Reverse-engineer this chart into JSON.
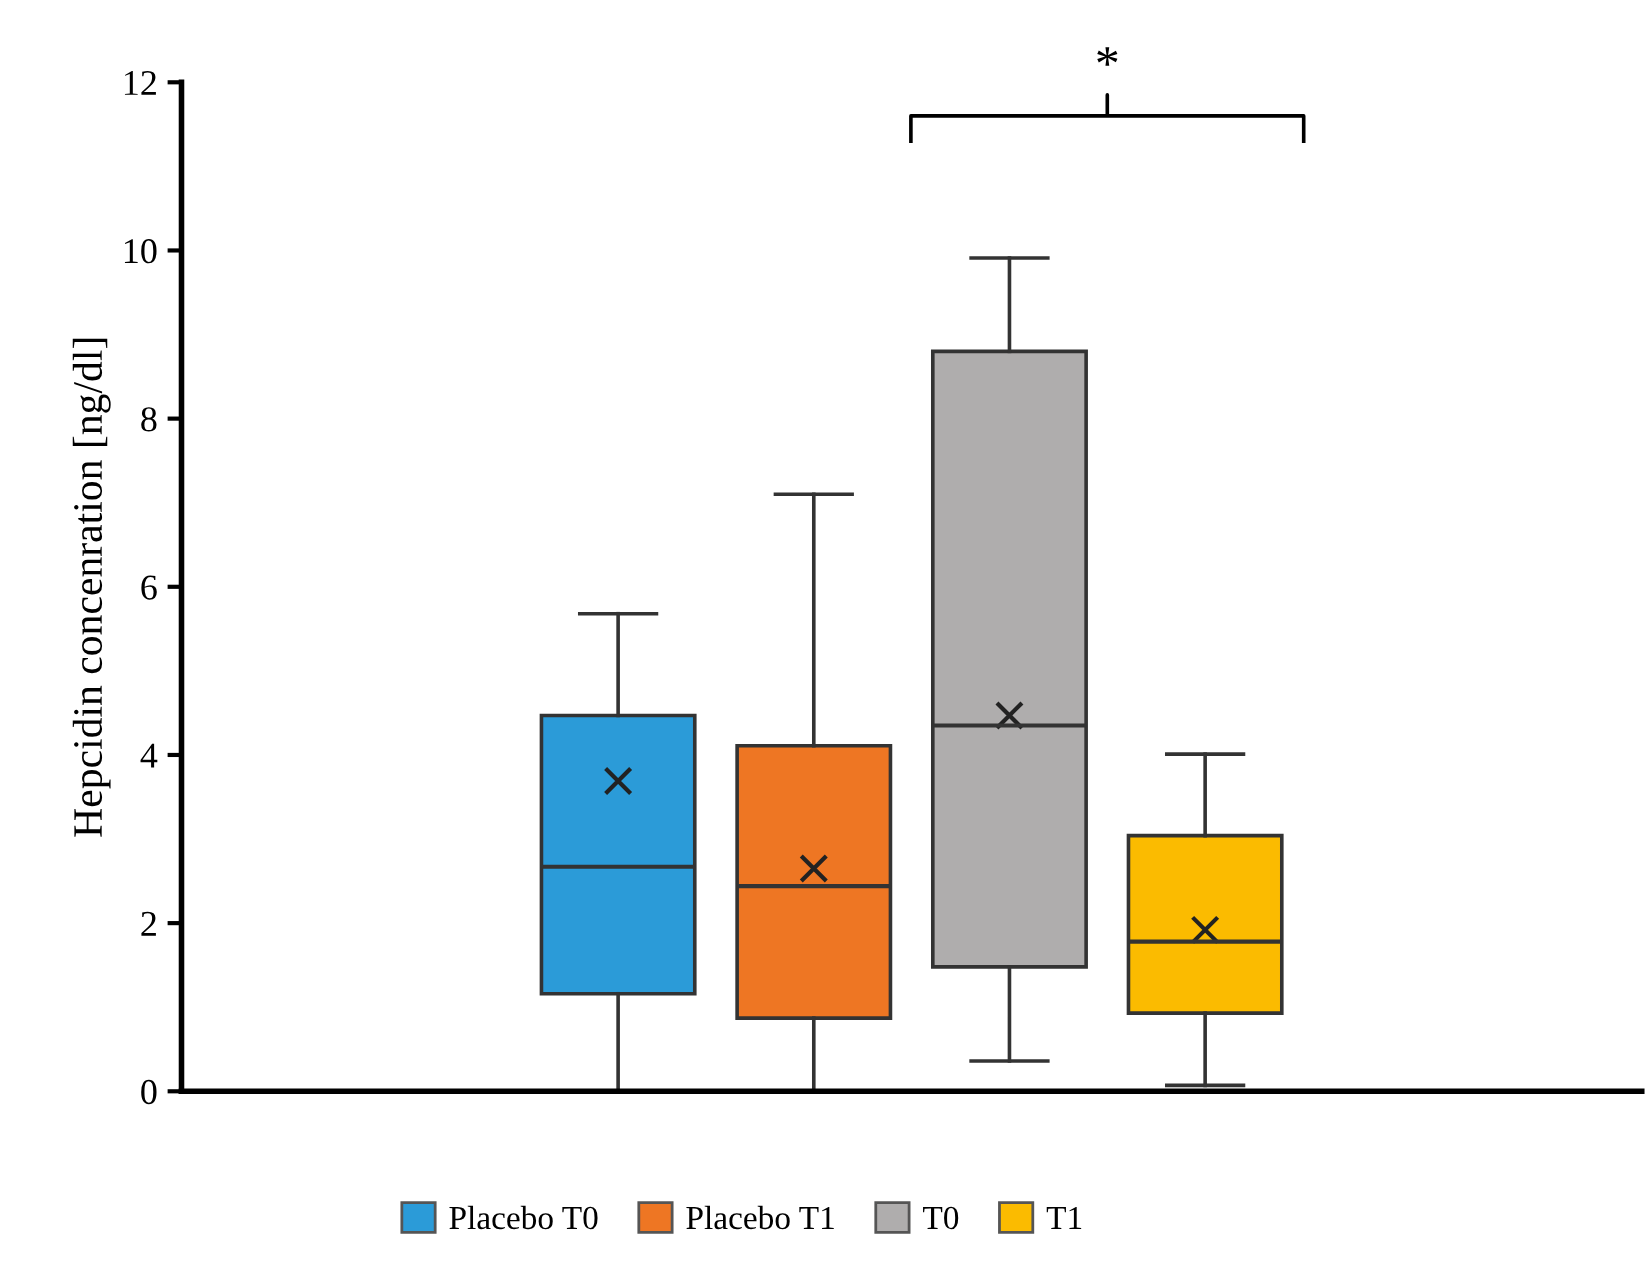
{
  "chart_data": {
    "type": "box",
    "ylabel": "Hepcidin concenration [ng/dl]",
    "categories": [
      null
    ],
    "series": [
      {
        "name": "Placebo T0",
        "color": "#2b9bd8",
        "boxes": [
          {
            "low": 0,
            "q1": 1.16,
            "median": 2.67,
            "q3": 4.47,
            "high": 5.68,
            "mean": 3.69
          }
        ]
      },
      {
        "name": "Placebo T1",
        "color": "#ee7623",
        "boxes": [
          {
            "low": 0,
            "q1": 0.87,
            "median": 2.44,
            "q3": 4.11,
            "high": 7.1,
            "mean": 2.65
          }
        ]
      },
      {
        "name": "T0",
        "color": "#afadad",
        "boxes": [
          {
            "low": 0.36,
            "q1": 1.48,
            "median": 4.35,
            "q3": 8.8,
            "high": 9.91,
            "mean": 4.47
          }
        ]
      },
      {
        "name": "T1",
        "color": "#fbbb00",
        "boxes": [
          {
            "low": 0.07,
            "q1": 0.93,
            "median": 1.78,
            "q3": 3.04,
            "high": 4.01,
            "mean": 1.92
          }
        ]
      }
    ],
    "ylim": [
      0,
      12
    ],
    "yticks": [
      0,
      2,
      4,
      6,
      8,
      10,
      12
    ],
    "tick_labels": "y",
    "grid": false,
    "legend": "bottom",
    "marker": "cross",
    "annotations": [
      "*"
    ]
  }
}
